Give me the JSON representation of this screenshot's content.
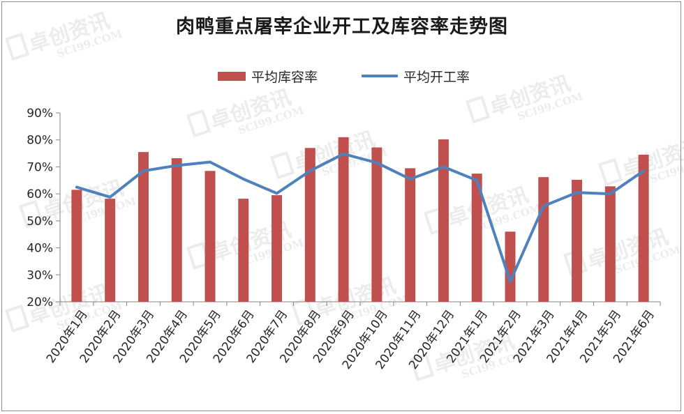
{
  "title": "肉鸭重点屠宰企业开工及库容率走势图",
  "watermark": {
    "main": "卓创资讯",
    "sub": "SCI99.COM"
  },
  "colors": {
    "bar": "#c0504d",
    "line": "#4f81bd",
    "axis": "#868686",
    "text": "#262626"
  },
  "chart_data": {
    "type": "bar",
    "title": "肉鸭重点屠宰企业开工及库容率走势图",
    "xlabel": "",
    "ylabel": "",
    "ylim": [
      20,
      90
    ],
    "yticks": [
      "20%",
      "30%",
      "40%",
      "50%",
      "60%",
      "70%",
      "80%",
      "90%"
    ],
    "grid": false,
    "legend_position": "top",
    "categories": [
      "2020年1月",
      "2020年2月",
      "2020年3月",
      "2020年4月",
      "2020年5月",
      "2020年6月",
      "2020年7月",
      "2020年8月",
      "2020年9月",
      "2020年10月",
      "2020年11月",
      "2020年12月",
      "2021年1月",
      "2021年2月",
      "2021年3月",
      "2021年4月",
      "2021年5月",
      "2021年6月"
    ],
    "series": [
      {
        "name": "平均库容率",
        "type": "bar",
        "values": [
          61.5,
          58.2,
          75.5,
          73.2,
          68.5,
          58.2,
          59.5,
          77.0,
          81.0,
          77.2,
          69.5,
          80.2,
          67.5,
          46.0,
          66.2,
          65.2,
          62.8,
          74.5
        ]
      },
      {
        "name": "平均开工率",
        "type": "line",
        "values": [
          62.5,
          58.8,
          68.5,
          70.5,
          71.8,
          65.5,
          60.2,
          68.5,
          74.8,
          71.5,
          65.5,
          70.0,
          65.0,
          27.5,
          55.5,
          60.5,
          60.0,
          68.5
        ]
      }
    ]
  }
}
